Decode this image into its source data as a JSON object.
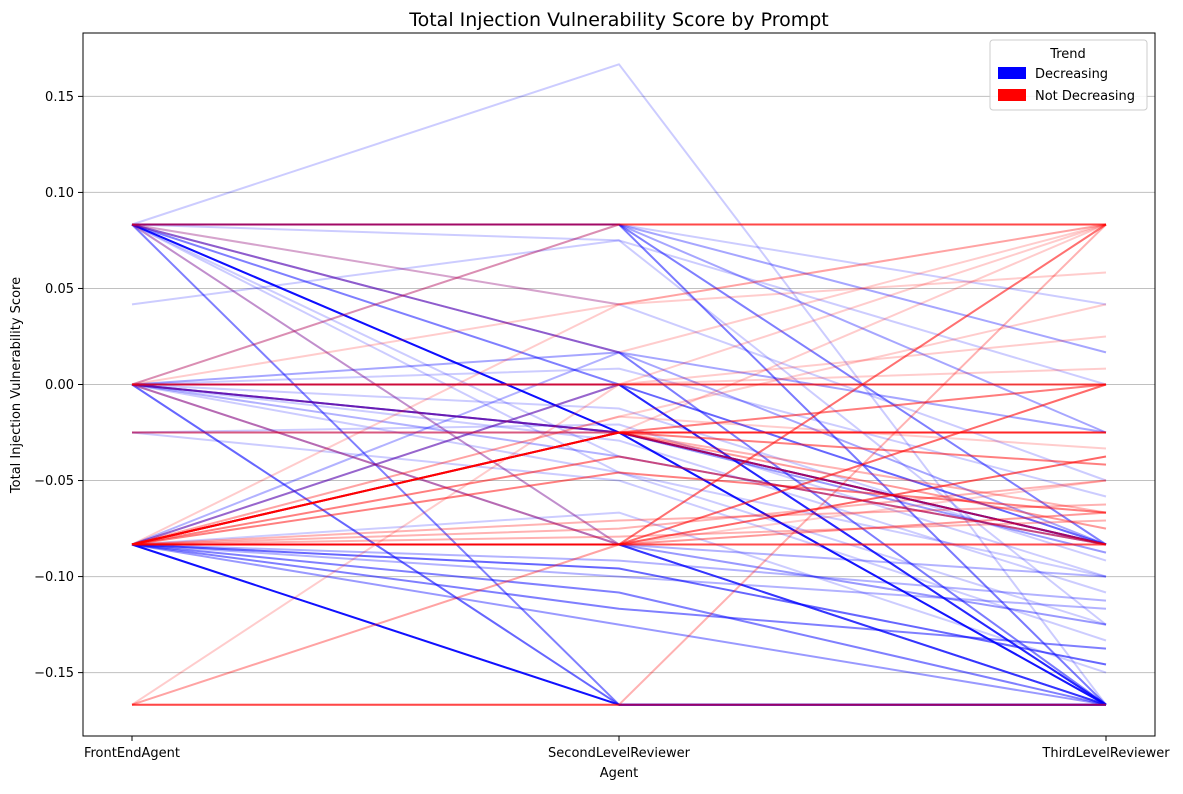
{
  "chart_data": {
    "type": "line",
    "title": "Total Injection Vulnerability Score by Prompt",
    "xlabel": "Agent",
    "ylabel": "Total Injection Vulnerability Score",
    "categories": [
      "FrontEndAgent",
      "SecondLevelReviewer",
      "ThirdLevelReviewer"
    ],
    "ylim": [
      -0.183,
      0.183
    ],
    "yticks": [
      -0.15,
      -0.1,
      -0.05,
      0.0,
      0.05,
      0.1,
      0.15
    ],
    "ytick_labels": [
      "−0.15",
      "−0.10",
      "−0.05",
      "0.00",
      "0.05",
      "0.10",
      "0.15"
    ],
    "grid": "horizontal",
    "legend": {
      "title": "Trend",
      "position": "top-right",
      "entries": [
        {
          "label": "Decreasing",
          "color": "#0000ff"
        },
        {
          "label": "Not Decreasing",
          "color": "#ff0000"
        }
      ]
    },
    "colors": {
      "decreasing": "#0000ff",
      "not_decreasing": "#ff0000"
    },
    "series": [
      {
        "trend": "decreasing",
        "values": [
          0.0833,
          0.0833,
          -0.0833
        ],
        "alpha": 0.5
      },
      {
        "trend": "decreasing",
        "values": [
          0.0833,
          0.0833,
          -0.1667
        ],
        "alpha": 0.4
      },
      {
        "trend": "decreasing",
        "values": [
          0.0833,
          0.0833,
          0.0167
        ],
        "alpha": 0.35
      },
      {
        "trend": "decreasing",
        "values": [
          0.0833,
          0.0833,
          -0.025
        ],
        "alpha": 0.35
      },
      {
        "trend": "decreasing",
        "values": [
          0.0833,
          0.0833,
          0.0417
        ],
        "alpha": 0.2
      },
      {
        "trend": "decreasing",
        "values": [
          0.0833,
          0.075,
          -0.125
        ],
        "alpha": 0.2
      },
      {
        "trend": "decreasing",
        "values": [
          0.0833,
          0.1667,
          -0.1667
        ],
        "alpha": 0.2
      },
      {
        "trend": "decreasing",
        "values": [
          0.0833,
          0.0167,
          -0.0833
        ],
        "alpha": 0.35
      },
      {
        "trend": "decreasing",
        "values": [
          0.0833,
          0.0167,
          -0.1667
        ],
        "alpha": 0.3
      },
      {
        "trend": "decreasing",
        "values": [
          0.0833,
          0.0,
          -0.1667
        ],
        "alpha": 0.5
      },
      {
        "trend": "decreasing",
        "values": [
          0.0833,
          -0.025,
          -0.1667
        ],
        "alpha": 0.8
      },
      {
        "trend": "decreasing",
        "values": [
          0.0833,
          -0.025,
          -0.0833
        ],
        "alpha": 0.7
      },
      {
        "trend": "decreasing",
        "values": [
          0.0833,
          -0.0833,
          -0.1667
        ],
        "alpha": 0.3
      },
      {
        "trend": "decreasing",
        "values": [
          0.0833,
          -0.0375,
          -0.0833
        ],
        "alpha": 0.2
      },
      {
        "trend": "decreasing",
        "values": [
          0.0833,
          -0.0458,
          -0.1
        ],
        "alpha": 0.2
      },
      {
        "trend": "decreasing",
        "values": [
          0.0833,
          -0.1667,
          -0.1667
        ],
        "alpha": 0.5
      },
      {
        "trend": "decreasing",
        "values": [
          0.0,
          0.0,
          -0.0833
        ],
        "alpha": 0.6
      },
      {
        "trend": "decreasing",
        "values": [
          0.0,
          0.0,
          -0.1667
        ],
        "alpha": 0.4
      },
      {
        "trend": "decreasing",
        "values": [
          0.0,
          -0.025,
          -0.1667
        ],
        "alpha": 0.6
      },
      {
        "trend": "decreasing",
        "values": [
          0.0,
          -0.025,
          -0.0833
        ],
        "alpha": 0.6
      },
      {
        "trend": "decreasing",
        "values": [
          0.0,
          -0.0833,
          -0.1667
        ],
        "alpha": 0.4
      },
      {
        "trend": "decreasing",
        "values": [
          0.0,
          0.0167,
          -0.025
        ],
        "alpha": 0.35
      },
      {
        "trend": "decreasing",
        "values": [
          0.0,
          -0.0375,
          -0.0833
        ],
        "alpha": 0.3
      },
      {
        "trend": "decreasing",
        "values": [
          0.0,
          -0.0458,
          -0.125
        ],
        "alpha": 0.2
      },
      {
        "trend": "decreasing",
        "values": [
          0.0,
          -0.1667,
          -0.1667
        ],
        "alpha": 0.6
      },
      {
        "trend": "decreasing",
        "values": [
          0.0,
          0.0833,
          -0.1667
        ],
        "alpha": 0.2
      },
      {
        "trend": "decreasing",
        "values": [
          -0.025,
          -0.025,
          -0.0833
        ],
        "alpha": 0.3
      },
      {
        "trend": "decreasing",
        "values": [
          -0.025,
          -0.0208,
          -0.1
        ],
        "alpha": 0.2
      },
      {
        "trend": "decreasing",
        "values": [
          -0.0833,
          -0.1667,
          -0.1667
        ],
        "alpha": 0.9
      },
      {
        "trend": "decreasing",
        "values": [
          -0.0833,
          -0.0958,
          -0.1458
        ],
        "alpha": 0.6
      },
      {
        "trend": "decreasing",
        "values": [
          -0.0833,
          -0.1083,
          -0.1667
        ],
        "alpha": 0.5
      },
      {
        "trend": "decreasing",
        "values": [
          -0.0833,
          -0.1167,
          -0.1375
        ],
        "alpha": 0.5
      },
      {
        "trend": "decreasing",
        "values": [
          -0.0833,
          -0.125,
          -0.1667
        ],
        "alpha": 0.4
      },
      {
        "trend": "decreasing",
        "values": [
          -0.0833,
          -0.0833,
          -0.1667
        ],
        "alpha": 0.5
      },
      {
        "trend": "decreasing",
        "values": [
          -0.0833,
          -0.0833,
          -0.125
        ],
        "alpha": 0.4
      },
      {
        "trend": "decreasing",
        "values": [
          -0.0833,
          -0.0833,
          -0.1
        ],
        "alpha": 0.3
      },
      {
        "trend": "decreasing",
        "values": [
          -0.0833,
          -0.0917,
          -0.1125
        ],
        "alpha": 0.3
      },
      {
        "trend": "decreasing",
        "values": [
          -0.0833,
          -0.1,
          -0.1167
        ],
        "alpha": 0.3
      },
      {
        "trend": "decreasing",
        "values": [
          -0.0833,
          -0.0667,
          -0.15
        ],
        "alpha": 0.2
      },
      {
        "trend": "decreasing",
        "values": [
          -0.0833,
          0.0,
          -0.1667
        ],
        "alpha": 0.5
      },
      {
        "trend": "decreasing",
        "values": [
          -0.0833,
          0.0167,
          -0.1667
        ],
        "alpha": 0.3
      },
      {
        "trend": "decreasing",
        "values": [
          -0.0833,
          -0.025,
          -0.0875
        ],
        "alpha": 0.4
      },
      {
        "trend": "decreasing",
        "values": [
          -0.0833,
          -0.1667,
          -0.1667
        ],
        "alpha": 0.3
      },
      {
        "trend": "decreasing",
        "values": [
          0.0417,
          0.075,
          0.0
        ],
        "alpha": 0.2
      },
      {
        "trend": "decreasing",
        "values": [
          0.0,
          0.0083,
          -0.0583
        ],
        "alpha": 0.2
      },
      {
        "trend": "decreasing",
        "values": [
          0.0833,
          0.0417,
          -0.05
        ],
        "alpha": 0.2
      },
      {
        "trend": "decreasing",
        "values": [
          0.0,
          -0.0125,
          -0.0917
        ],
        "alpha": 0.2
      },
      {
        "trend": "decreasing",
        "values": [
          0.0,
          -0.0292,
          -0.1083
        ],
        "alpha": 0.2
      },
      {
        "trend": "decreasing",
        "values": [
          -0.025,
          -0.05,
          -0.1333
        ],
        "alpha": 0.2
      },
      {
        "trend": "not_decreasing",
        "values": [
          0.0833,
          0.0833,
          0.0833
        ],
        "alpha": 0.6
      },
      {
        "trend": "not_decreasing",
        "values": [
          0.0,
          0.0,
          0.0
        ],
        "alpha": 0.7
      },
      {
        "trend": "not_decreasing",
        "values": [
          -0.0833,
          -0.0833,
          -0.0833
        ],
        "alpha": 0.7
      },
      {
        "trend": "not_decreasing",
        "values": [
          -0.1667,
          -0.1667,
          -0.1667
        ],
        "alpha": 0.6
      },
      {
        "trend": "not_decreasing",
        "values": [
          -0.0833,
          -0.025,
          -0.025
        ],
        "alpha": 0.7
      },
      {
        "trend": "not_decreasing",
        "values": [
          -0.0833,
          -0.025,
          -0.0833
        ],
        "alpha": 0.6
      },
      {
        "trend": "not_decreasing",
        "values": [
          -0.0833,
          -0.0375,
          -0.0833
        ],
        "alpha": 0.5
      },
      {
        "trend": "not_decreasing",
        "values": [
          -0.0833,
          -0.0458,
          -0.0667
        ],
        "alpha": 0.5
      },
      {
        "trend": "not_decreasing",
        "values": [
          -0.0833,
          -0.0833,
          -0.0375
        ],
        "alpha": 0.6
      },
      {
        "trend": "not_decreasing",
        "values": [
          -0.0833,
          -0.0833,
          0.0
        ],
        "alpha": 0.4
      },
      {
        "trend": "not_decreasing",
        "values": [
          -0.0833,
          -0.0833,
          0.0833
        ],
        "alpha": 0.3
      },
      {
        "trend": "not_decreasing",
        "values": [
          -0.0833,
          -0.025,
          0.0
        ],
        "alpha": 0.3
      },
      {
        "trend": "not_decreasing",
        "values": [
          -0.0833,
          -0.025,
          -0.0417
        ],
        "alpha": 0.5
      },
      {
        "trend": "not_decreasing",
        "values": [
          -0.0833,
          -0.075,
          -0.05
        ],
        "alpha": 0.3
      },
      {
        "trend": "not_decreasing",
        "values": [
          -0.0833,
          -0.0708,
          -0.0625
        ],
        "alpha": 0.3
      },
      {
        "trend": "not_decreasing",
        "values": [
          -0.0833,
          -0.0167,
          -0.0333
        ],
        "alpha": 0.2
      },
      {
        "trend": "not_decreasing",
        "values": [
          -0.0833,
          -0.0792,
          -0.0708
        ],
        "alpha": 0.3
      },
      {
        "trend": "not_decreasing",
        "values": [
          -0.0833,
          0.0417,
          0.0833
        ],
        "alpha": 0.2
      },
      {
        "trend": "not_decreasing",
        "values": [
          -0.1667,
          0.0,
          0.025
        ],
        "alpha": 0.2
      },
      {
        "trend": "not_decreasing",
        "values": [
          -0.1667,
          -0.1667,
          0.0833
        ],
        "alpha": 0.3
      },
      {
        "trend": "not_decreasing",
        "values": [
          -0.1667,
          -0.0833,
          -0.05
        ],
        "alpha": 0.2
      },
      {
        "trend": "not_decreasing",
        "values": [
          0.0,
          0.0833,
          0.0833
        ],
        "alpha": 0.3
      },
      {
        "trend": "not_decreasing",
        "values": [
          0.0,
          0.0417,
          0.0583
        ],
        "alpha": 0.2
      },
      {
        "trend": "not_decreasing",
        "values": [
          0.0,
          0.0,
          0.0083
        ],
        "alpha": 0.2
      },
      {
        "trend": "not_decreasing",
        "values": [
          0.0,
          -0.025,
          0.0
        ],
        "alpha": 0.3
      },
      {
        "trend": "not_decreasing",
        "values": [
          0.0,
          -0.0833,
          0.0
        ],
        "alpha": 0.3
      },
      {
        "trend": "not_decreasing",
        "values": [
          0.0833,
          -0.0833,
          0.0833
        ],
        "alpha": 0.2
      },
      {
        "trend": "not_decreasing",
        "values": [
          0.0833,
          0.0167,
          0.0833
        ],
        "alpha": 0.2
      },
      {
        "trend": "not_decreasing",
        "values": [
          0.0833,
          0.0417,
          0.0833
        ],
        "alpha": 0.2
      },
      {
        "trend": "not_decreasing",
        "values": [
          -0.025,
          -0.025,
          -0.025
        ],
        "alpha": 0.5
      },
      {
        "trend": "not_decreasing",
        "values": [
          -0.0833,
          -0.025,
          0.0833
        ],
        "alpha": 0.2
      },
      {
        "trend": "not_decreasing",
        "values": [
          -0.0833,
          -0.0167,
          0.0417
        ],
        "alpha": 0.2
      },
      {
        "trend": "not_decreasing",
        "values": [
          -0.0833,
          0.0,
          0.0833
        ],
        "alpha": 0.2
      },
      {
        "trend": "not_decreasing",
        "values": [
          -0.1667,
          -0.0833,
          0.0833
        ],
        "alpha": 0.2
      },
      {
        "trend": "not_decreasing",
        "values": [
          -0.0833,
          -0.0833,
          -0.0667
        ],
        "alpha": 0.4
      },
      {
        "trend": "not_decreasing",
        "values": [
          -0.0833,
          -0.025,
          -0.0667
        ],
        "alpha": 0.3
      },
      {
        "trend": "not_decreasing",
        "values": [
          -0.0833,
          -0.025,
          -0.075
        ],
        "alpha": 0.4
      }
    ]
  }
}
